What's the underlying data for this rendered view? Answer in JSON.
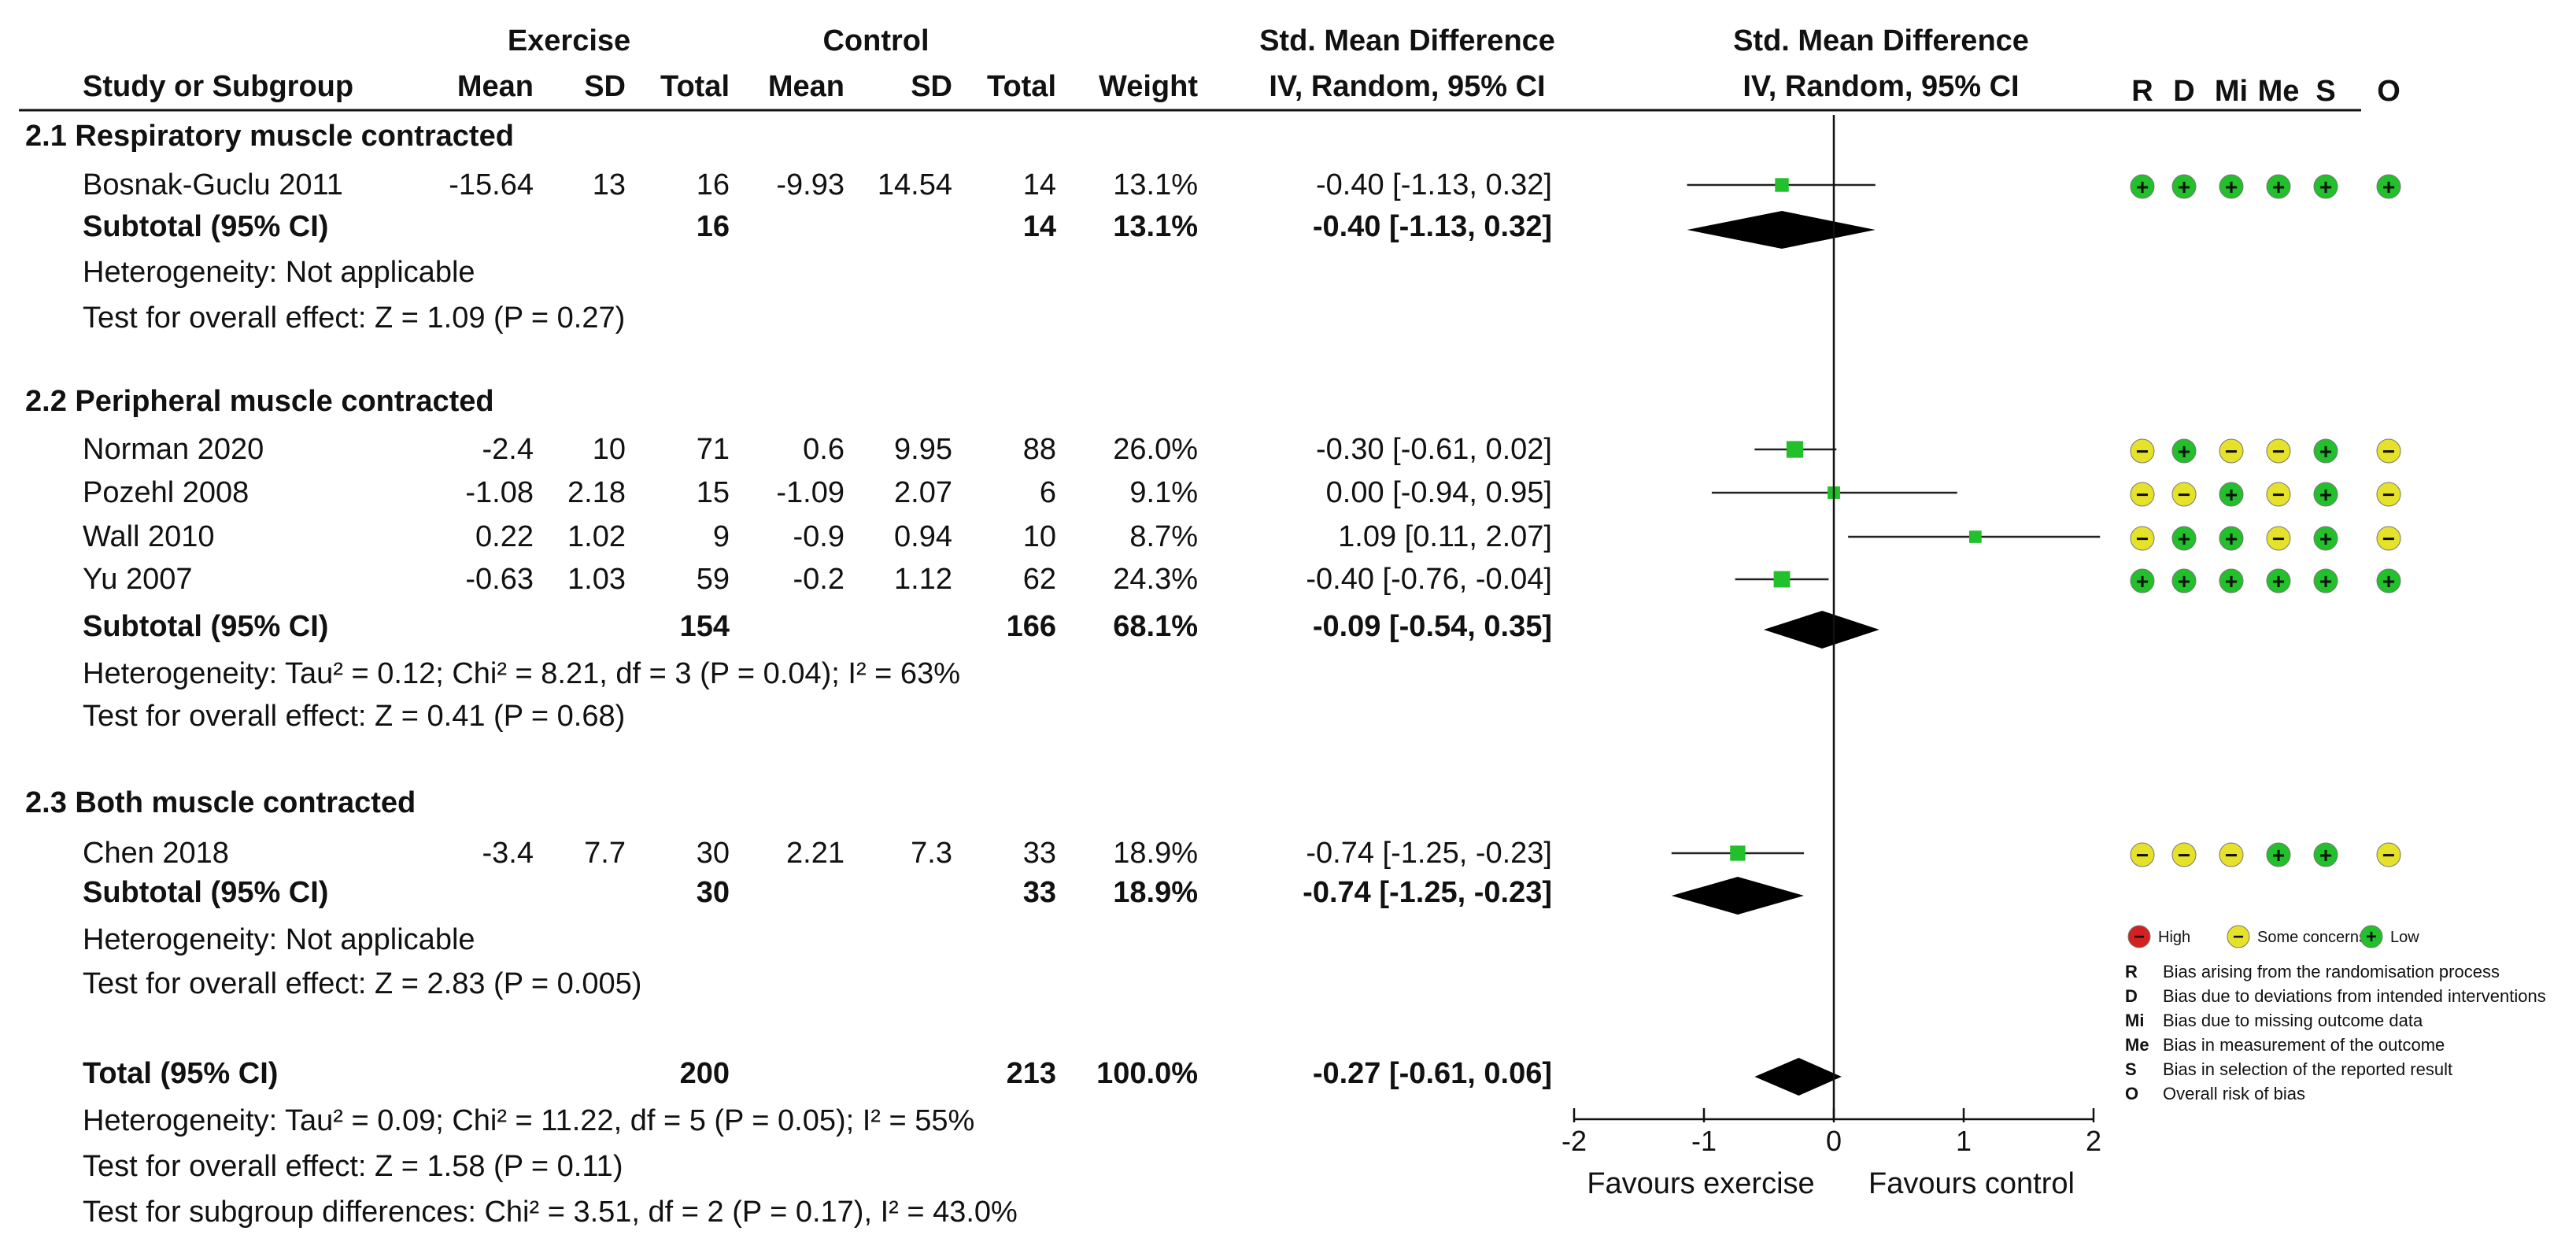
{
  "chart_data": {
    "type": "forest",
    "header": {
      "study_col": "Study or Subgroup",
      "exercise_group": "Exercise",
      "control_group": "Control",
      "mean": "Mean",
      "sd": "SD",
      "total": "Total",
      "weight": "Weight",
      "smd_title": "Std. Mean Difference",
      "smd_method": "IV, Random, 95% CI",
      "plot_title": "Std. Mean Difference",
      "plot_method": "IV, Random, 95% CI"
    },
    "rob_columns": [
      "R",
      "D",
      "Mi",
      "Me",
      "S",
      "O"
    ],
    "subgroups": [
      {
        "title": "2.1 Respiratory muscle contracted",
        "studies": [
          {
            "name": "Bosnak-Guclu 2011",
            "ex_mean": "-15.64",
            "ex_sd": "13",
            "ex_total": "16",
            "ct_mean": "-9.93",
            "ct_sd": "14.54",
            "ct_total": "14",
            "weight": "13.1%",
            "ci_text": "-0.40 [-1.13, 0.32]",
            "est": -0.4,
            "lo": -1.13,
            "hi": 0.32,
            "w": 13.1,
            "rob": [
              "low",
              "low",
              "low",
              "low",
              "low",
              "low"
            ]
          }
        ],
        "subtotal": {
          "label": "Subtotal (95% CI)",
          "ex_total": "16",
          "ct_total": "14",
          "weight": "13.1%",
          "ci_text": "-0.40 [-1.13, 0.32]",
          "est": -0.4,
          "lo": -1.13,
          "hi": 0.32
        },
        "heterogeneity": "Heterogeneity: Not applicable",
        "overall": "Test for overall effect: Z = 1.09 (P = 0.27)"
      },
      {
        "title": "2.2 Peripheral muscle contracted",
        "studies": [
          {
            "name": "Norman 2020",
            "ex_mean": "-2.4",
            "ex_sd": "10",
            "ex_total": "71",
            "ct_mean": "0.6",
            "ct_sd": "9.95",
            "ct_total": "88",
            "weight": "26.0%",
            "ci_text": "-0.30 [-0.61, 0.02]",
            "est": -0.3,
            "lo": -0.61,
            "hi": 0.02,
            "w": 26.0,
            "rob": [
              "some",
              "low",
              "some",
              "some",
              "low",
              "some"
            ]
          },
          {
            "name": "Pozehl 2008",
            "ex_mean": "-1.08",
            "ex_sd": "2.18",
            "ex_total": "15",
            "ct_mean": "-1.09",
            "ct_sd": "2.07",
            "ct_total": "6",
            "weight": "9.1%",
            "ci_text": "0.00 [-0.94, 0.95]",
            "est": 0.0,
            "lo": -0.94,
            "hi": 0.95,
            "w": 9.1,
            "rob": [
              "some",
              "some",
              "low",
              "some",
              "low",
              "some"
            ]
          },
          {
            "name": "Wall 2010",
            "ex_mean": "0.22",
            "ex_sd": "1.02",
            "ex_total": "9",
            "ct_mean": "-0.9",
            "ct_sd": "0.94",
            "ct_total": "10",
            "weight": "8.7%",
            "ci_text": "1.09 [0.11, 2.07]",
            "est": 1.09,
            "lo": 0.11,
            "hi": 2.07,
            "w": 8.7,
            "rob": [
              "some",
              "low",
              "low",
              "some",
              "low",
              "some"
            ]
          },
          {
            "name": "Yu 2007",
            "ex_mean": "-0.63",
            "ex_sd": "1.03",
            "ex_total": "59",
            "ct_mean": "-0.2",
            "ct_sd": "1.12",
            "ct_total": "62",
            "weight": "24.3%",
            "ci_text": "-0.40 [-0.76, -0.04]",
            "est": -0.4,
            "lo": -0.76,
            "hi": -0.04,
            "w": 24.3,
            "rob": [
              "low",
              "low",
              "low",
              "low",
              "low",
              "low"
            ]
          }
        ],
        "subtotal": {
          "label": "Subtotal (95% CI)",
          "ex_total": "154",
          "ct_total": "166",
          "weight": "68.1%",
          "ci_text": "-0.09 [-0.54, 0.35]",
          "est": -0.09,
          "lo": -0.54,
          "hi": 0.35
        },
        "heterogeneity": "Heterogeneity: Tau² = 0.12; Chi² = 8.21, df = 3 (P = 0.04); I² = 63%",
        "overall": "Test for overall effect: Z = 0.41 (P = 0.68)"
      },
      {
        "title": "2.3 Both muscle contracted",
        "studies": [
          {
            "name": "Chen 2018",
            "ex_mean": "-3.4",
            "ex_sd": "7.7",
            "ex_total": "30",
            "ct_mean": "2.21",
            "ct_sd": "7.3",
            "ct_total": "33",
            "weight": "18.9%",
            "ci_text": "-0.74 [-1.25, -0.23]",
            "est": -0.74,
            "lo": -1.25,
            "hi": -0.23,
            "w": 18.9,
            "rob": [
              "some",
              "some",
              "some",
              "low",
              "low",
              "some"
            ]
          }
        ],
        "subtotal": {
          "label": "Subtotal (95% CI)",
          "ex_total": "30",
          "ct_total": "33",
          "weight": "18.9%",
          "ci_text": "-0.74 [-1.25, -0.23]",
          "est": -0.74,
          "lo": -1.25,
          "hi": -0.23
        },
        "heterogeneity": "Heterogeneity: Not applicable",
        "overall": "Test for overall effect: Z = 2.83 (P = 0.005)"
      }
    ],
    "total": {
      "label": "Total (95% CI)",
      "ex_total": "200",
      "ct_total": "213",
      "weight": "100.0%",
      "ci_text": "-0.27 [-0.61, 0.06]",
      "est": -0.27,
      "lo": -0.61,
      "hi": 0.06
    },
    "total_heterogeneity": "Heterogeneity: Tau² = 0.09; Chi² = 11.22, df = 5 (P = 0.05); I² = 55%",
    "total_overall": "Test for overall effect: Z = 1.58 (P = 0.11)",
    "subgroup_diff": "Test for subgroup differences: Chi² = 3.51, df = 2 (P = 0.17), I² = 43.0%",
    "axis": {
      "xlim": [
        -2,
        2
      ],
      "ticks": [
        -2,
        -1,
        0,
        1,
        2
      ],
      "tick_labels": [
        "-2",
        "-1",
        "0",
        "1",
        "2"
      ],
      "favours_left": "Favours exercise",
      "favours_right": "Favours control"
    },
    "legend": {
      "high": "High",
      "some": "Some concerns",
      "low": "Low",
      "items": [
        {
          "key": "R",
          "text": "Bias arising from the randomisation process"
        },
        {
          "key": "D",
          "text": "Bias due to deviations from intended interventions"
        },
        {
          "key": "Mi",
          "text": "Bias due to missing outcome data"
        },
        {
          "key": "Me",
          "text": "Bias in measurement of the outcome"
        },
        {
          "key": "S",
          "text": "Bias in selection of the reported result"
        },
        {
          "key": "O",
          "text": "Overall risk of bias"
        }
      ]
    },
    "colors": {
      "green": "#22c02a",
      "yellow": "#e6e22a",
      "red": "#d42020",
      "line": "#111111"
    }
  }
}
